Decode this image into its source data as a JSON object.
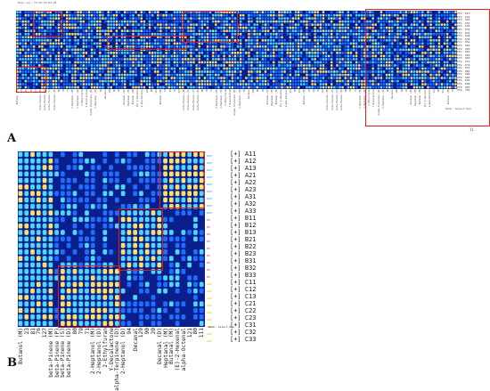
{
  "panel_a": {
    "label": "A",
    "header_text": "Pear.csv, T4-T5-T6-D4-D5",
    "row_labels": [
      "ITV. 613",
      "ITV. 622",
      "ITV. 623",
      "ITV. 631",
      "ITV. 632",
      "ITV. 633",
      "ITV. 641",
      "ITV. 642",
      "ITV. 643",
      "ITV. 651",
      "ITV. 652",
      "ITV. 653",
      "ITV. 661",
      "ITV. 662",
      "ITV. 663",
      "ITV. 671",
      "ITV. 672",
      "ITV. 673",
      "ITV. 681",
      "ITV. 682",
      "ITV. 683",
      "ITV. 691",
      "ITV. 692",
      "ITV. 693",
      "ITV. 701"
    ],
    "footnote": "Rank: Select Row",
    "tick": "11"
  },
  "panel_b": {
    "label": "B",
    "row_labels": [
      "[+] A11",
      "[+] A12",
      "[+] A13",
      "[+] A21",
      "[+] A22",
      "[+] A23",
      "[+] A31",
      "[+] A32",
      "[+] A33",
      "[+] B11",
      "[+] B12",
      "[+] B13",
      "[+] B21",
      "[+] B22",
      "[+] B23",
      "[+] B31",
      "[+] B32",
      "[+] B33",
      "[+] C11",
      "[+] C12",
      "[+] C13",
      "[+] C21",
      "[+] C22",
      "[+] C23",
      "[+] C31",
      "[+] C32",
      "[+] C33"
    ],
    "row_tags": [
      "ann",
      "ann",
      "ann",
      "ann",
      "ann",
      "ann",
      "ann",
      "ann",
      "ann",
      "mn",
      "mn",
      "mn",
      "mn",
      "mn",
      "mn",
      "mn",
      "mn",
      "mn",
      "sun",
      "sun",
      "sun",
      "sun",
      "sun",
      "sun",
      "sun",
      "sun",
      "sun"
    ],
    "column_labels": [
      "Butanol (M)",
      "23",
      "81",
      "76",
      "127",
      "beta-Pinene (M)",
      "beta-Pinene (P)",
      "beta-Pinene (S)",
      "beta-Pinene (D)",
      "80",
      "79",
      "71",
      "2-Heptanol (M)",
      "2-Heptanol (D)",
      "2-Ethylfuran",
      "Y-Decalactone",
      "alpha-Terpinene (D)",
      "2-Heptanol (D)",
      "94",
      "Decanal",
      "129",
      "90",
      "20",
      "Decanal (D)",
      "Heptanal (M)",
      "Butanal (M)",
      "(E)-2-Hexenal",
      "alpha-Octenal",
      "121",
      "80",
      "111"
    ],
    "footnote": "Rank: Select Row"
  },
  "colors": {
    "cool": "#0a1f8c",
    "mid": "#1e6fff",
    "bright": "#4fd8ff",
    "hot": "#ffe066",
    "box": "#e0201c",
    "tag_ann": "#2aa0e0",
    "tag_mn": "#c23cc6",
    "tag_sun": "#d6c000"
  }
}
